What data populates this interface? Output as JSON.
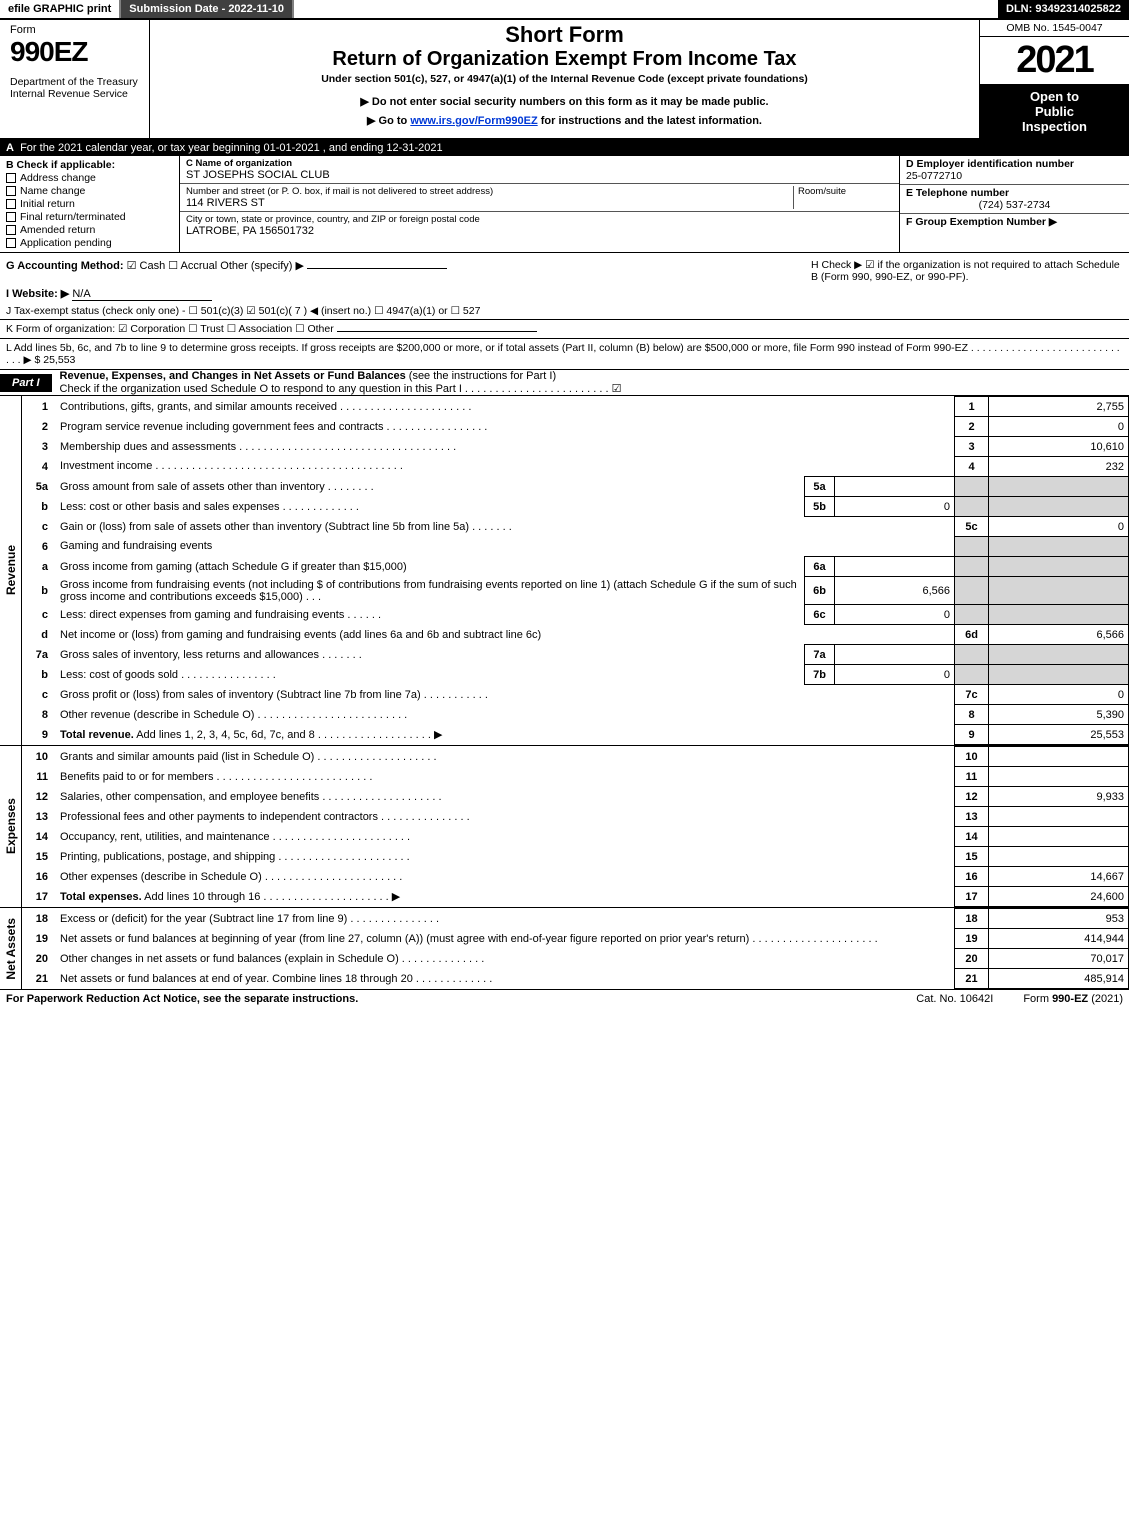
{
  "topbar": {
    "efile": "efile GRAPHIC print",
    "submission": "Submission Date - 2022-11-10",
    "dln": "DLN: 93492314025822"
  },
  "header": {
    "form_word": "Form",
    "form_number": "990EZ",
    "department": "Department of the Treasury\nInternal Revenue Service",
    "short_form": "Short Form",
    "return_title": "Return of Organization Exempt From Income Tax",
    "under_section": "Under section 501(c), 527, or 4947(a)(1) of the Internal Revenue Code (except private foundations)",
    "note_ssn": "▶ Do not enter social security numbers on this form as it may be made public.",
    "note_goto_pre": "▶ Go to ",
    "note_goto_link": "www.irs.gov/Form990EZ",
    "note_goto_post": " for instructions and the latest information.",
    "omb": "OMB No. 1545-0047",
    "year": "2021",
    "open1": "Open to",
    "open2": "Public",
    "open3": "Inspection"
  },
  "A": {
    "label": "A",
    "text": "For the 2021 calendar year, or tax year beginning 01-01-2021 , and ending 12-31-2021"
  },
  "B": {
    "label": "B",
    "header": "Check if applicable:",
    "opts": [
      "Address change",
      "Name change",
      "Initial return",
      "Final return/terminated",
      "Amended return",
      "Application pending"
    ]
  },
  "C": {
    "name_label": "C Name of organization",
    "name": "ST JOSEPHS SOCIAL CLUB",
    "street_label": "Number and street (or P. O. box, if mail is not delivered to street address)",
    "room_label": "Room/suite",
    "street": "114 RIVERS ST",
    "city_label": "City or town, state or province, country, and ZIP or foreign postal code",
    "city": "LATROBE, PA  156501732"
  },
  "DEF": {
    "D_label": "D Employer identification number",
    "D_value": "25-0772710",
    "E_label": "E Telephone number",
    "E_value": "(724) 537-2734",
    "F_label": "F Group Exemption Number  ▶"
  },
  "G": {
    "label": "G Accounting Method:",
    "opts": "☑ Cash   ☐ Accrual   Other (specify) ▶",
    "underline": ""
  },
  "H": {
    "text": "H   Check ▶  ☑  if the organization is not required to attach Schedule B (Form 990, 990-EZ, or 990-PF)."
  },
  "I": {
    "label": "I Website: ▶",
    "value": "N/A"
  },
  "J": {
    "text": "J Tax-exempt status (check only one) - ☐ 501(c)(3)  ☑ 501(c)( 7 ) ◀ (insert no.)  ☐ 4947(a)(1) or  ☐ 527"
  },
  "K": {
    "text": "K Form of organization:   ☑ Corporation   ☐ Trust   ☐ Association   ☐ Other"
  },
  "L": {
    "text": "L Add lines 5b, 6c, and 7b to line 9 to determine gross receipts. If gross receipts are $200,000 or more, or if total assets (Part II, column (B) below) are $500,000 or more, file Form 990 instead of Form 990-EZ  . . . . . . . . . . . . . . . . . . . . . . . . . . . . .  ▶ $ 25,553"
  },
  "part1": {
    "tag": "Part I",
    "title": "Revenue, Expenses, and Changes in Net Assets or Fund Balances",
    "title_light": " (see the instructions for Part I)",
    "check_line": "Check if the organization used Schedule O to respond to any question in this Part I . . . . . . . . . . . . . . . . . . . . . . . . ☑"
  },
  "revenue_rows": [
    {
      "n": "1",
      "desc": "Contributions, gifts, grants, and similar amounts received . . . . . . . . . . . . . . . . . . . . . .",
      "col": "1",
      "amt": "2,755"
    },
    {
      "n": "2",
      "desc": "Program service revenue including government fees and contracts . . . . . . . . . . . . . . . . .",
      "col": "2",
      "amt": "0"
    },
    {
      "n": "3",
      "desc": "Membership dues and assessments . . . . . . . . . . . . . . . . . . . . . . . . . . . . . . . . . . . .",
      "col": "3",
      "amt": "10,610"
    },
    {
      "n": "4",
      "desc": "Investment income . . . . . . . . . . . . . . . . . . . . . . . . . . . . . . . . . . . . . . . . .",
      "col": "4",
      "amt": "232"
    }
  ],
  "line5": {
    "a_desc": "Gross amount from sale of assets other than inventory  .  .  .  .  .  .  .  .",
    "a_box": "5a",
    "a_val": "",
    "b_desc": "Less: cost or other basis and sales expenses  .  .  .  .  .  .  .  .  .  .  .  .  .",
    "b_box": "5b",
    "b_val": "0",
    "c_desc": "Gain or (loss) from sale of assets other than inventory (Subtract line 5b from line 5a)  .  .  .  .  .  .  .",
    "c_col": "5c",
    "c_amt": "0"
  },
  "line6": {
    "hdr": "Gaming and fundraising events",
    "a_desc": "Gross income from gaming (attach Schedule G if greater than $15,000)",
    "a_box": "6a",
    "a_val": "",
    "b_desc1": "Gross income from fundraising events (not including $ ",
    "b_desc2": " of contributions from fundraising events reported on line 1) (attach Schedule G if the sum of such gross income and contributions exceeds $15,000)   .  .  .",
    "b_box": "6b",
    "b_val": "6,566",
    "c_desc": "Less: direct expenses from gaming and fundraising events  .  .  .  .  .  .",
    "c_box": "6c",
    "c_val": "0",
    "d_desc": "Net income or (loss) from gaming and fundraising events (add lines 6a and 6b and subtract line 6c)",
    "d_col": "6d",
    "d_amt": "6,566"
  },
  "line7": {
    "a_desc": "Gross sales of inventory, less returns and allowances  .  .  .  .  .  .  .",
    "a_box": "7a",
    "a_val": "",
    "b_desc": "Less: cost of goods sold   .  .  .  .  .  .  .  .  .  .  .  .  .  .  .  .",
    "b_box": "7b",
    "b_val": "0",
    "c_desc": "Gross profit or (loss) from sales of inventory (Subtract line 7b from line 7a)  .  .  .  .  .  .  .  .  .  .  .",
    "c_col": "7c",
    "c_amt": "0"
  },
  "line8": {
    "desc": "Other revenue (describe in Schedule O) .  .  .  .  .  .  .  .  .  .  .  .  .  .  .  .  .  .  .  .  .  .  .  .  .",
    "col": "8",
    "amt": "5,390"
  },
  "line9": {
    "desc": "Total revenue. Add lines 1, 2, 3, 4, 5c, 6d, 7c, and 8  .  .  .  .  .  .  .  .  .  .  .  .  .  .  .  .  .  .  .   ▶",
    "col": "9",
    "amt": "25,553"
  },
  "expense_rows": [
    {
      "n": "10",
      "desc": "Grants and similar amounts paid (list in Schedule O)  .  .  .  .  .  .  .  .  .  .  .  .  .  .  .  .  .  .  .  .",
      "col": "10",
      "amt": ""
    },
    {
      "n": "11",
      "desc": "Benefits paid to or for members    .  .  .  .  .  .  .  .  .  .  .  .  .  .  .  .  .  .  .  .  .  .  .  .  .  .",
      "col": "11",
      "amt": ""
    },
    {
      "n": "12",
      "desc": "Salaries, other compensation, and employee benefits .  .  .  .  .  .  .  .  .  .  .  .  .  .  .  .  .  .  .  .",
      "col": "12",
      "amt": "9,933"
    },
    {
      "n": "13",
      "desc": "Professional fees and other payments to independent contractors  .  .  .  .  .  .  .  .  .  .  .  .  .  .  .",
      "col": "13",
      "amt": ""
    },
    {
      "n": "14",
      "desc": "Occupancy, rent, utilities, and maintenance .  .  .  .  .  .  .  .  .  .  .  .  .  .  .  .  .  .  .  .  .  .  .",
      "col": "14",
      "amt": ""
    },
    {
      "n": "15",
      "desc": "Printing, publications, postage, and shipping .  .  .  .  .  .  .  .  .  .  .  .  .  .  .  .  .  .  .  .  .  .",
      "col": "15",
      "amt": ""
    },
    {
      "n": "16",
      "desc": "Other expenses (describe in Schedule O)   .  .  .  .  .  .  .  .  .  .  .  .  .  .  .  .  .  .  .  .  .  .  .",
      "col": "16",
      "amt": "14,667"
    },
    {
      "n": "17",
      "desc": "Total expenses. Add lines 10 through 16    .  .  .  .  .  .  .  .  .  .  .  .  .  .  .  .  .  .  .  .  .   ▶",
      "col": "17",
      "amt": "24,600",
      "bold": true
    }
  ],
  "netassets_rows": [
    {
      "n": "18",
      "desc": "Excess or (deficit) for the year (Subtract line 17 from line 9)     .  .  .  .  .  .  .  .  .  .  .  .  .  .  .",
      "col": "18",
      "amt": "953"
    },
    {
      "n": "19",
      "desc": "Net assets or fund balances at beginning of year (from line 27, column (A)) (must agree with end-of-year figure reported on prior year's return) .  .  .  .  .  .  .  .  .  .  .  .  .  .  .  .  .  .  .  .  .",
      "col": "19",
      "amt": "414,944"
    },
    {
      "n": "20",
      "desc": "Other changes in net assets or fund balances (explain in Schedule O) .  .  .  .  .  .  .  .  .  .  .  .  .  .",
      "col": "20",
      "amt": "70,017"
    },
    {
      "n": "21",
      "desc": "Net assets or fund balances at end of year. Combine lines 18 through 20 .  .  .  .  .  .  .  .  .  .  .  .  .",
      "col": "21",
      "amt": "485,914"
    }
  ],
  "section_labels": {
    "rev": "Revenue",
    "exp": "Expenses",
    "net": "Net Assets"
  },
  "footer": {
    "left": "For Paperwork Reduction Act Notice, see the separate instructions.",
    "center": "Cat. No. 10642I",
    "right": "Form 990-EZ (2021)"
  },
  "colors": {
    "black": "#000000",
    "grey_cell": "#d6d6d6",
    "darkgrey": "#404040",
    "link": "#0038d6"
  }
}
